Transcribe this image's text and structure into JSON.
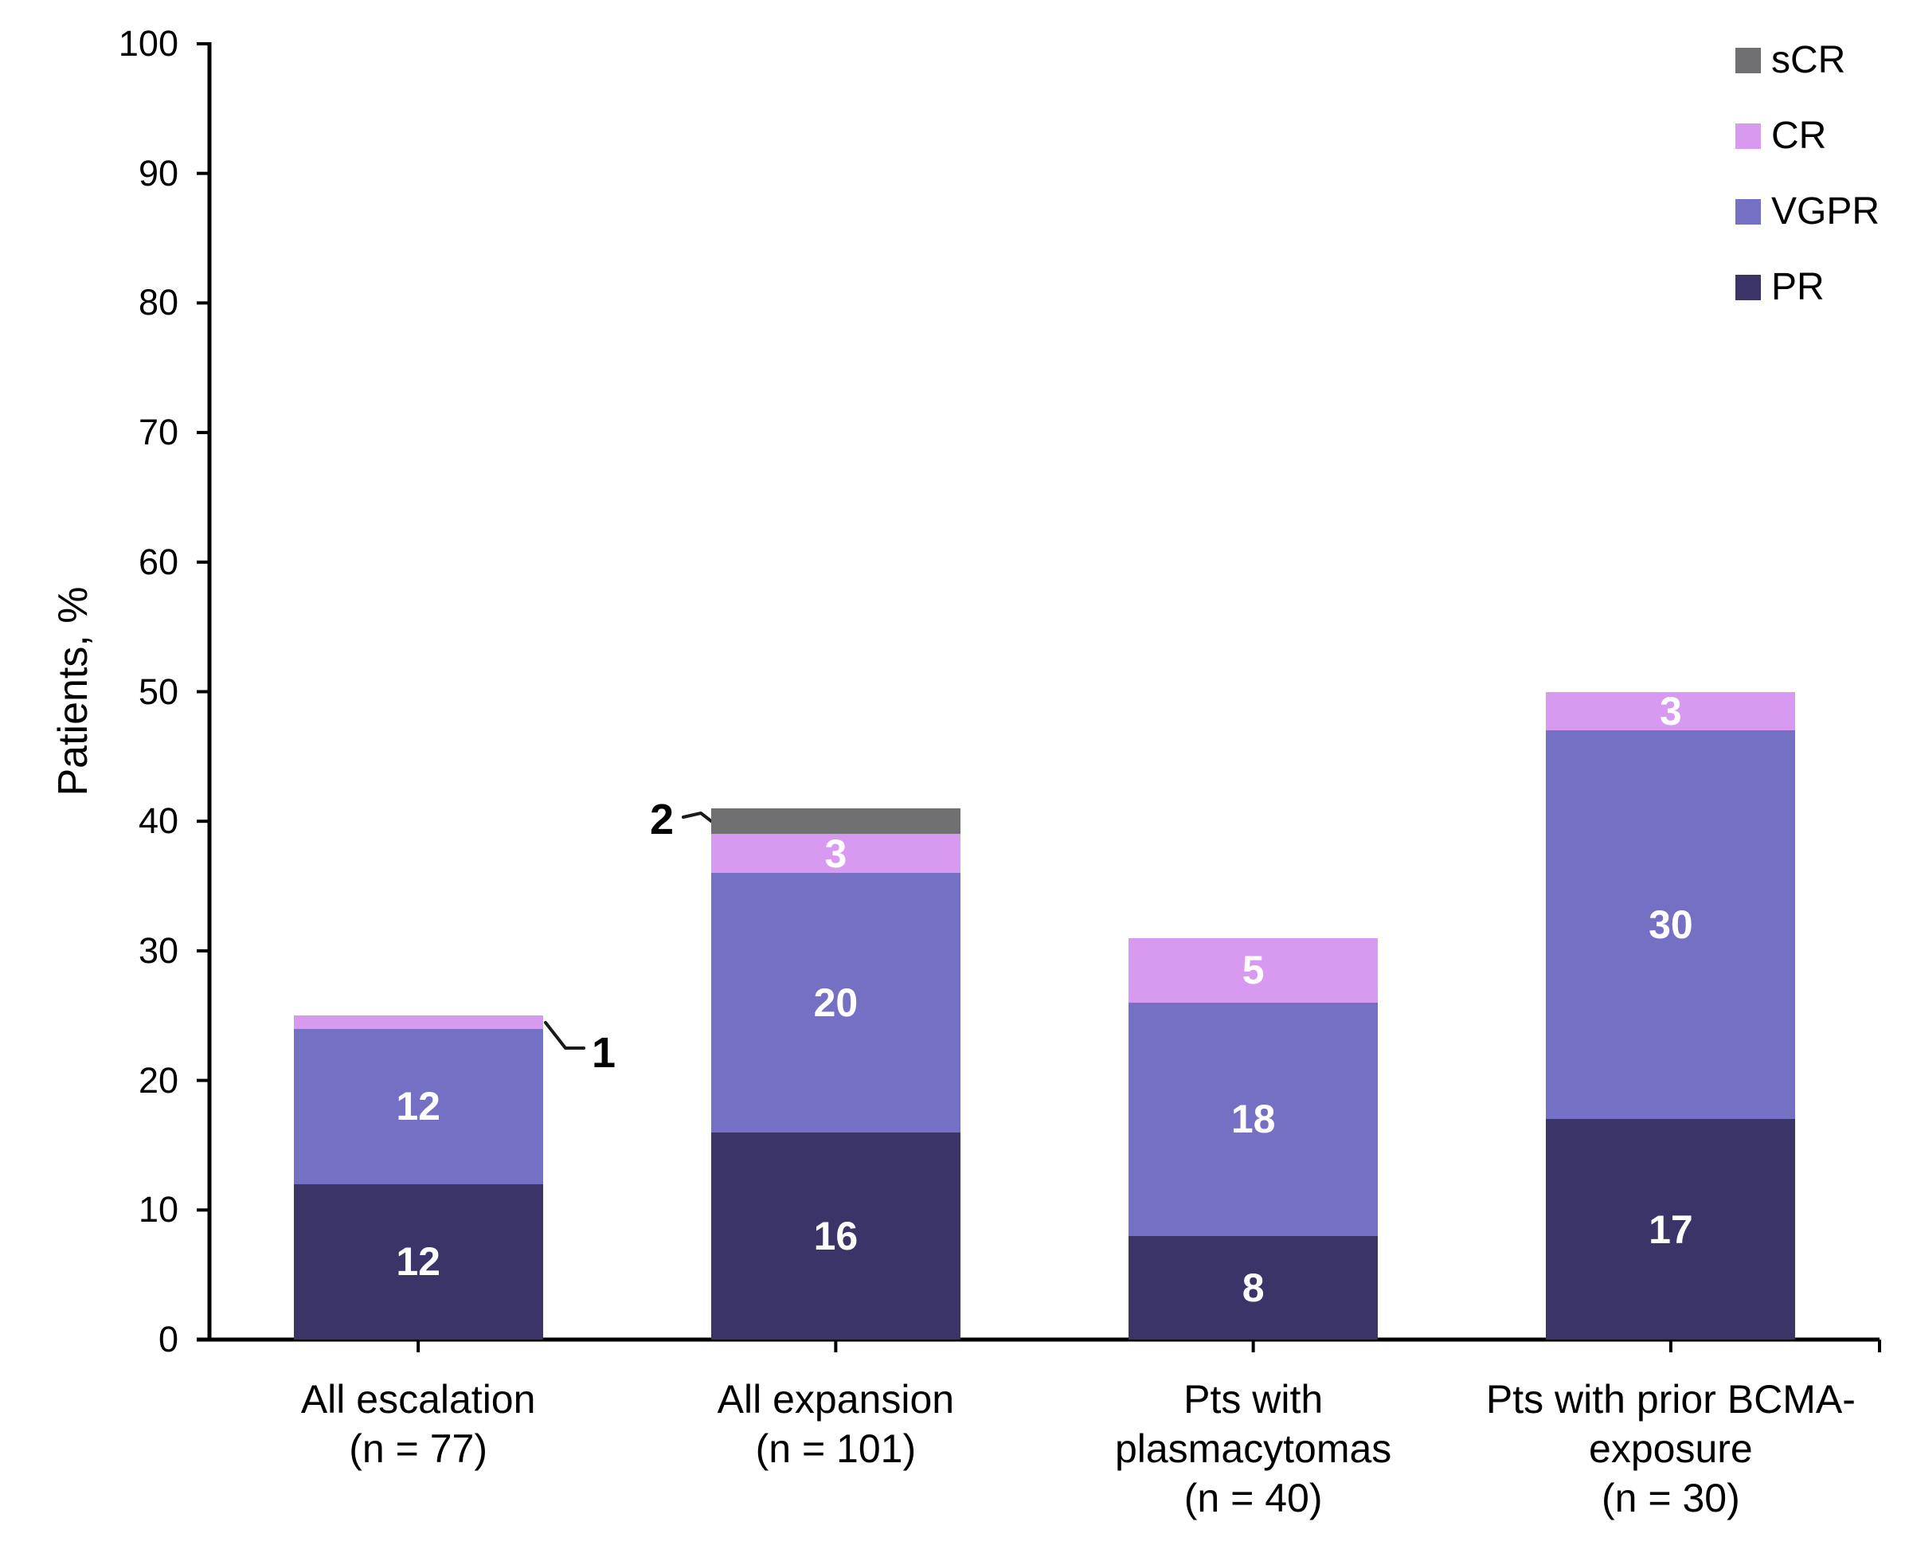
{
  "chart_data": {
    "type": "bar",
    "stacked": true,
    "title": "",
    "ylabel": "Patients, %",
    "ylim": [
      0,
      100
    ],
    "yticks": [
      0,
      10,
      20,
      30,
      40,
      50,
      60,
      70,
      80,
      90,
      100
    ],
    "grid": false,
    "categories": [
      [
        "All escalation",
        "(n = 77)"
      ],
      [
        "All expansion",
        "(n = 101)"
      ],
      [
        "Pts with",
        "plasmacytomas",
        "(n = 40)"
      ],
      [
        "Pts with prior BCMA-",
        "exposure",
        "(n = 30)"
      ]
    ],
    "series": [
      {
        "name": "PR",
        "color": "#3a3468",
        "values": [
          12,
          16,
          8,
          17
        ]
      },
      {
        "name": "VGPR",
        "color": "#7470c4",
        "values": [
          12,
          20,
          18,
          30
        ]
      },
      {
        "name": "CR",
        "color": "#d79af0",
        "values": [
          1,
          3,
          5,
          3
        ]
      },
      {
        "name": "sCR",
        "color": "#707073",
        "values": [
          0,
          2,
          0,
          0
        ]
      }
    ],
    "stack_totals": [
      25,
      41,
      31,
      50
    ],
    "legend_order": [
      "sCR",
      "CR",
      "VGPR",
      "PR"
    ],
    "legend_position": "top-right",
    "callouts": [
      {
        "label": "1",
        "series": "CR",
        "category_index": 0
      },
      {
        "label": "2",
        "series": "sCR",
        "category_index": 1
      }
    ],
    "value_label_color": "#ffffff",
    "axis_color": "#000000"
  }
}
